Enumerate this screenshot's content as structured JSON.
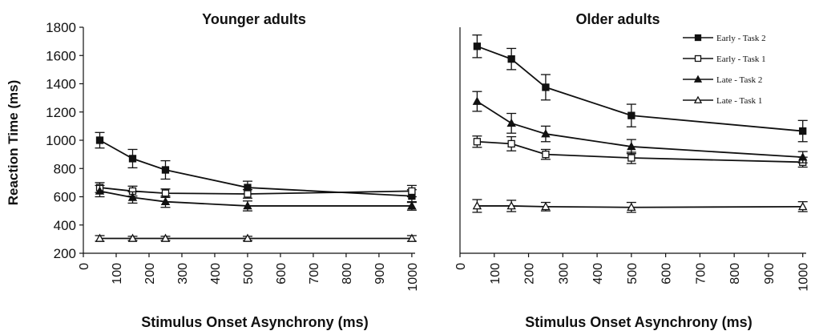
{
  "chart_data": [
    {
      "type": "line",
      "title": "Younger adults",
      "xlabel": "Stimulus Onset Asynchrony (ms)",
      "ylabel": "Reaction Time (ms)",
      "x_ticks": [
        0,
        100,
        200,
        300,
        400,
        500,
        600,
        700,
        800,
        900,
        1000
      ],
      "y_ticks": [
        200,
        400,
        600,
        800,
        1000,
        1200,
        1400,
        1600,
        1800
      ],
      "xlim": [
        0,
        1010
      ],
      "ylim": [
        200,
        1800
      ],
      "grid": false,
      "x": [
        50,
        150,
        250,
        500,
        1000
      ],
      "series": [
        {
          "name": "Early - Task 2",
          "marker": "filled-square",
          "values": [
            1000,
            870,
            790,
            665,
            605
          ],
          "errors": [
            55,
            65,
            65,
            45,
            45
          ]
        },
        {
          "name": "Early - Task 1",
          "marker": "open-square",
          "values": [
            665,
            640,
            625,
            620,
            640
          ],
          "errors": [
            35,
            35,
            30,
            30,
            40
          ]
        },
        {
          "name": "Late - Task 2",
          "marker": "filled-triangle",
          "values": [
            640,
            595,
            565,
            535,
            535
          ],
          "errors": [
            40,
            40,
            40,
            35,
            30
          ]
        },
        {
          "name": "Late - Task 1",
          "marker": "open-triangle",
          "values": [
            305,
            305,
            305,
            305,
            305
          ],
          "errors": [
            20,
            15,
            15,
            15,
            20
          ]
        }
      ]
    },
    {
      "type": "line",
      "title": "Older adults",
      "xlabel": "Stimulus Onset Asynchrony (ms)",
      "ylabel": "",
      "x_ticks": [
        0,
        100,
        200,
        300,
        400,
        500,
        600,
        700,
        800,
        900,
        1000
      ],
      "xlim": [
        0,
        1010
      ],
      "ylim": [
        200,
        1800
      ],
      "grid": false,
      "legend_position": "top-right",
      "x": [
        50,
        150,
        250,
        500,
        1000
      ],
      "series": [
        {
          "name": "Early - Task 2",
          "marker": "filled-square",
          "values": [
            1665,
            1575,
            1375,
            1175,
            1065
          ],
          "errors": [
            80,
            75,
            90,
            80,
            75
          ]
        },
        {
          "name": "Early - Task 1",
          "marker": "open-square",
          "values": [
            990,
            975,
            900,
            875,
            845
          ],
          "errors": [
            40,
            50,
            35,
            40,
            35
          ]
        },
        {
          "name": "Late - Task 2",
          "marker": "filled-triangle",
          "values": [
            1275,
            1120,
            1045,
            955,
            880
          ],
          "errors": [
            70,
            70,
            55,
            50,
            40
          ]
        },
        {
          "name": "Late - Task 1",
          "marker": "open-triangle",
          "values": [
            535,
            535,
            530,
            525,
            530
          ],
          "errors": [
            45,
            40,
            30,
            35,
            35
          ]
        }
      ]
    }
  ]
}
